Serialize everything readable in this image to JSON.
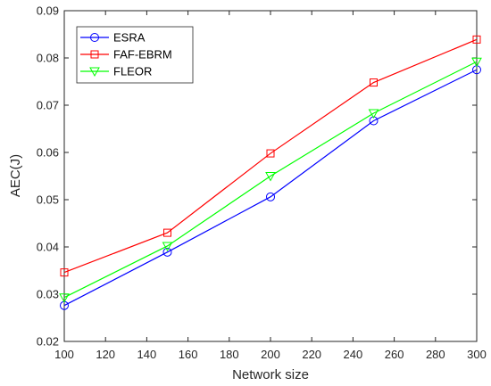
{
  "chart_data": {
    "type": "line",
    "title": "",
    "xlabel": "Network size",
    "ylabel": "AEC(J)",
    "xlim": [
      100,
      300
    ],
    "ylim": [
      0.02,
      0.09
    ],
    "x_ticks": [
      100,
      120,
      140,
      160,
      180,
      200,
      220,
      240,
      260,
      280,
      300
    ],
    "y_ticks": [
      0.02,
      0.03,
      0.04,
      0.05,
      0.06,
      0.07,
      0.08,
      0.09
    ],
    "y_tick_labels": [
      "0.02",
      "0.03",
      "0.04",
      "0.05",
      "0.06",
      "0.07",
      "0.08",
      "0.09"
    ],
    "grid": false,
    "legend_position": "top-left",
    "x": [
      100,
      150,
      200,
      250,
      300
    ],
    "series": [
      {
        "name": "ESRA",
        "values": [
          0.0276,
          0.0389,
          0.0506,
          0.0667,
          0.0775
        ],
        "color": "#0000ff",
        "marker": "circle"
      },
      {
        "name": "FAF-EBRM",
        "values": [
          0.0346,
          0.043,
          0.0598,
          0.0748,
          0.0839
        ],
        "color": "#ff0000",
        "marker": "square"
      },
      {
        "name": "FLEOR",
        "values": [
          0.0293,
          0.0402,
          0.055,
          0.0683,
          0.0792
        ],
        "color": "#00ff00",
        "marker": "triangle-down"
      }
    ]
  }
}
